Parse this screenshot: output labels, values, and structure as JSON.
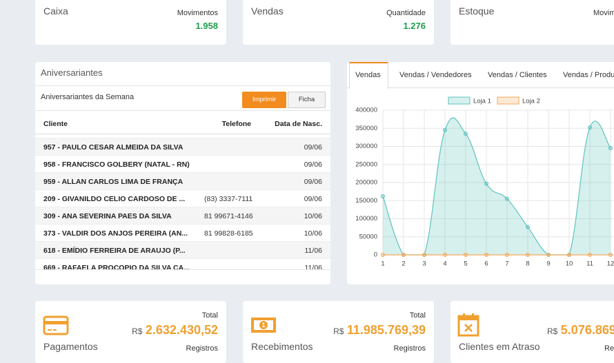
{
  "top_cards": [
    {
      "title": "Caixa",
      "label": "Movimentos",
      "value": "1.958"
    },
    {
      "title": "Vendas",
      "label": "Quantidade",
      "value": "1.276"
    },
    {
      "title": "Estoque",
      "label": "Movim"
    }
  ],
  "birthdays": {
    "title": "Aniversariantes",
    "subtitle": "Aniversariantes da Semana",
    "print_button": "Imprimir",
    "card_button": "Ficha",
    "columns": [
      "Cliente",
      "Telefone",
      "Data de Nasc."
    ],
    "rows": [
      [
        "957 - PAULO CESAR ALMEIDA DA SILVA",
        null,
        "09/06"
      ],
      [
        "958 - FRANCISCO GOLBERY (NATAL - RN)",
        null,
        "09/06"
      ],
      [
        "959 - ALLAN CARLOS LIMA DE FRANÇA",
        null,
        "09/06"
      ],
      [
        "209 - GIVANILDO CELIO CARDOSO DE ...",
        "(83) 3337-7111",
        "09/06"
      ],
      [
        "309 - ANA SEVERINA PAES DA SILVA",
        "81 99671-4146",
        "10/06"
      ],
      [
        "373 - VALDIR DOS ANJOS PEREIRA (AN...",
        "81 99828-6185",
        "10/06"
      ],
      [
        "618 - EMÍDIO FERREIRA DE ARAUJO (P...",
        null,
        "11/06"
      ],
      [
        "669 - RAFAELA PROCOPIO DA SILVA CA...",
        null,
        "11/06"
      ]
    ]
  },
  "tabs": [
    "Vendas",
    "Vendas / Vendedores",
    "Vendas / Clientes",
    "Vendas / Produt"
  ],
  "chart_data": {
    "type": "line",
    "x": [
      1,
      2,
      3,
      4,
      5,
      6,
      7,
      8,
      9,
      10,
      11,
      12
    ],
    "series": [
      {
        "name": "Loja 1",
        "color": "#5cc3bd",
        "values": [
          162000,
          0,
          0,
          345000,
          335000,
          197000,
          155000,
          77000,
          0,
          0,
          352000,
          295000
        ]
      },
      {
        "name": "Loja 2",
        "color": "#f5a95b",
        "values": [
          0,
          0,
          0,
          0,
          0,
          0,
          0,
          0,
          0,
          0,
          0,
          0
        ]
      }
    ],
    "ylim": [
      0,
      400000
    ],
    "yticks": [
      0,
      50000,
      100000,
      150000,
      200000,
      250000,
      300000,
      350000,
      400000
    ],
    "grid": true
  },
  "bottom_cards": [
    {
      "title": "Pagamentos",
      "label": "Total",
      "currency": "R$",
      "value": "2.632.430,52",
      "sub_label": "Registros"
    },
    {
      "title": "Recebimentos",
      "label": "Total",
      "currency": "R$",
      "value": "11.985.769,39",
      "sub_label": "Registros"
    },
    {
      "title": "Clientes em Atraso",
      "currency": "R$",
      "value": "5.076.869",
      "sub_label": "Reg"
    }
  ]
}
